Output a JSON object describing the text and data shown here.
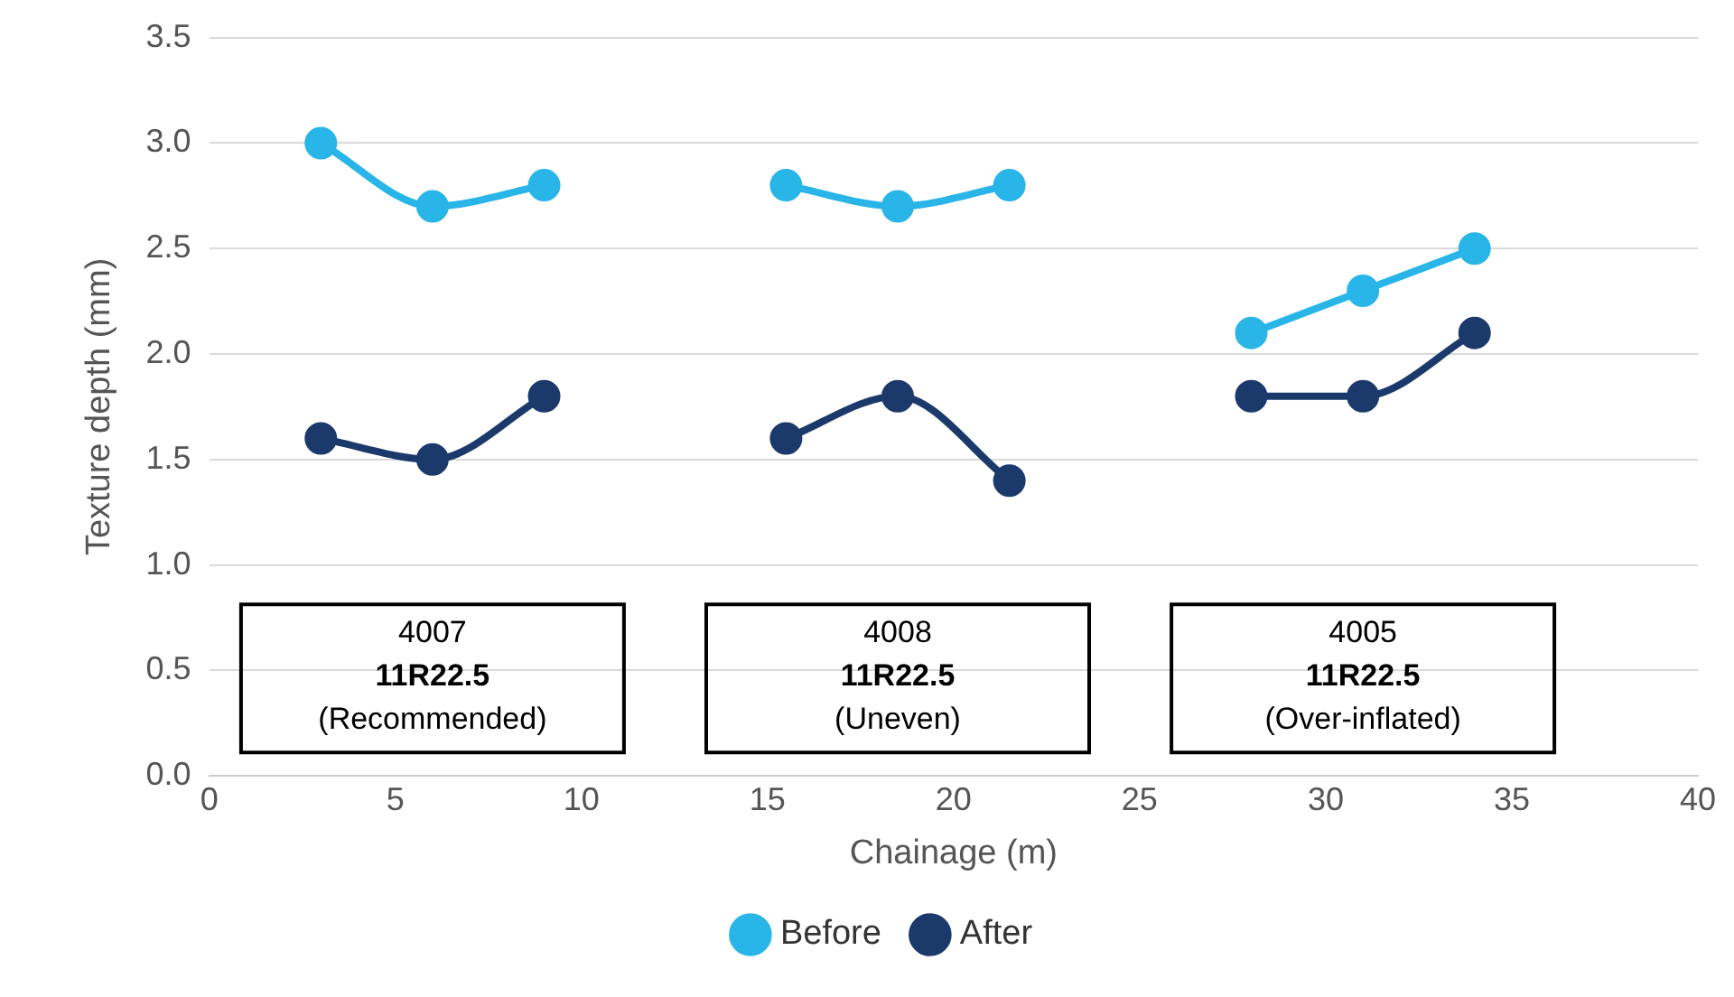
{
  "chart_data": {
    "type": "line",
    "xlabel": "Chainage (m)",
    "ylabel": "Texture depth (mm)",
    "x": [
      3,
      6,
      9,
      12,
      15.5,
      18.5,
      21.5,
      25,
      28,
      31,
      34
    ],
    "series": [
      {
        "name": "Before",
        "color": "#29b5e8",
        "values": [
          3.0,
          2.7,
          2.8,
          null,
          2.8,
          2.7,
          2.8,
          null,
          2.1,
          2.3,
          2.5
        ]
      },
      {
        "name": "After",
        "color": "#1b3a6b",
        "values": [
          1.6,
          1.5,
          1.8,
          null,
          1.6,
          1.8,
          1.4,
          null,
          1.8,
          1.8,
          2.1
        ]
      }
    ],
    "xlim": [
      0,
      40
    ],
    "xticks": [
      0,
      5,
      10,
      15,
      20,
      25,
      30,
      35,
      40
    ],
    "ylim": [
      0,
      3.5
    ],
    "yticks": [
      {
        "value": 0,
        "label": "0.0"
      },
      0.5,
      {
        "value": 1,
        "label": "1.0"
      },
      1.5,
      {
        "value": 2,
        "label": "2.0"
      },
      2.5,
      {
        "value": 3,
        "label": "3.0"
      },
      3.5
    ],
    "grid": "y",
    "legend": "bottom",
    "marker": "circle",
    "line_style": "solid",
    "annotations": [
      "4007\n11R22.5\n(Recommended)",
      "4008\n11R22.5\n(Uneven)",
      "4005\n11R22.5\n(Over-inflated)"
    ]
  }
}
